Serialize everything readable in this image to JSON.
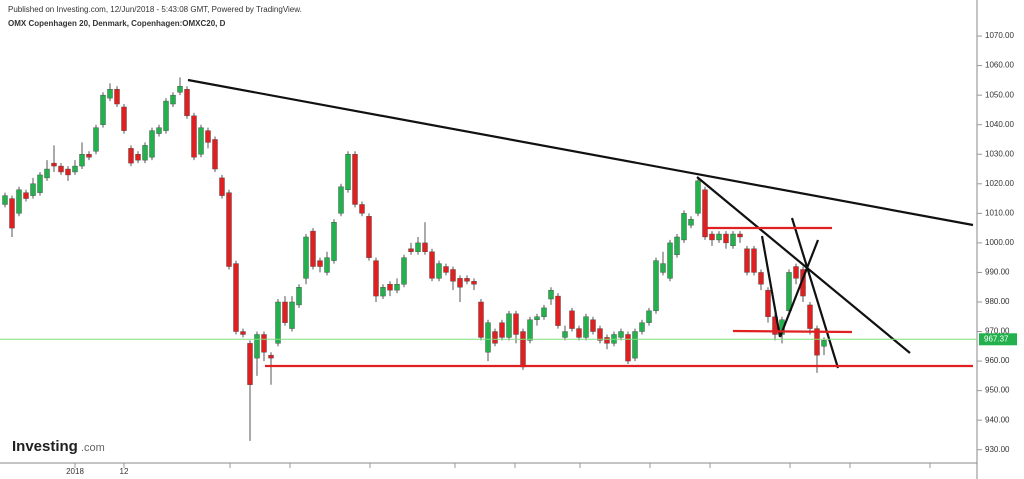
{
  "chart_data": {
    "type": "candlestick",
    "header": "Published on Investing.com, 12/Jun/2018 - 5:43:08 GMT, Powered by TradingView.",
    "title": "OMX Copenhagen 20, Denmark, Copenhagen:OMXC20, D",
    "logo": {
      "name": "Investing",
      "suffix": ".com"
    },
    "last_price": 967.37,
    "last_price_label": "967.37",
    "up_color": "#22b14c",
    "down_color": "#e02020",
    "ylim": [
      925.5,
      1079.5
    ],
    "yticks": [
      {
        "value": 930,
        "label": "930.00"
      },
      {
        "value": 940,
        "label": "940.00"
      },
      {
        "value": 950,
        "label": "950.00"
      },
      {
        "value": 960,
        "label": "960.00"
      },
      {
        "value": 970,
        "label": "970.00"
      },
      {
        "value": 980,
        "label": "980.00"
      },
      {
        "value": 990,
        "label": "990.00"
      },
      {
        "value": 1000,
        "label": "1000.00"
      },
      {
        "value": 1010,
        "label": "1010.00"
      },
      {
        "value": 1020,
        "label": "1020.00"
      },
      {
        "value": 1030,
        "label": "1030.00"
      },
      {
        "value": 1040,
        "label": "1040.00"
      },
      {
        "value": 1050,
        "label": "1050.00"
      },
      {
        "value": 1060,
        "label": "1060.00"
      },
      {
        "value": 1070,
        "label": "1070.00"
      }
    ],
    "categories": [
      null,
      null,
      null,
      null,
      null,
      null,
      null,
      null,
      null,
      null,
      "2018",
      null,
      null,
      null,
      null,
      null,
      null,
      "12",
      null,
      null,
      null,
      null,
      null,
      null,
      null,
      null,
      null,
      null,
      null,
      null,
      null,
      null,
      null,
      null,
      null,
      null,
      null,
      null,
      null,
      null,
      null,
      null,
      null,
      null,
      null,
      null,
      null,
      null,
      null,
      null,
      null,
      null,
      null,
      null,
      null,
      null,
      null,
      null,
      null,
      null,
      null,
      null,
      null,
      null,
      null,
      null,
      null,
      null,
      null,
      null,
      null,
      null,
      null,
      null,
      null,
      null,
      null,
      null,
      null,
      null,
      null,
      null,
      null,
      null,
      null,
      null,
      null,
      null,
      null,
      null,
      null,
      null,
      null,
      null,
      null,
      null,
      null,
      null,
      null,
      null,
      null,
      null,
      null,
      null,
      null,
      null,
      null,
      null,
      null,
      null,
      null,
      null,
      null,
      null,
      null,
      null,
      null,
      null
    ],
    "open": [
      1013,
      1015,
      1010,
      1017,
      1016,
      1017,
      1022,
      1027,
      1026,
      1025,
      1024,
      1026,
      1030,
      1031,
      1040,
      1049,
      1052,
      1046,
      1032,
      1030,
      1028,
      1029,
      1037,
      1038,
      1047,
      1051,
      1052,
      1043,
      1030,
      1038,
      1035,
      1022,
      1017,
      993,
      970,
      966,
      961,
      969,
      962,
      966,
      980,
      971,
      979,
      988,
      1004,
      994,
      990,
      994,
      1010,
      1018,
      1030,
      1013,
      1009,
      994,
      982,
      986,
      984,
      986,
      998,
      997,
      1000,
      997,
      988,
      992,
      991,
      988,
      988,
      987,
      980,
      963,
      970,
      973,
      968,
      976,
      970,
      967,
      974,
      975,
      981,
      982,
      968,
      977,
      971,
      968,
      974,
      971,
      968,
      966,
      968,
      969,
      961,
      970,
      973,
      977,
      990,
      988,
      996,
      1001,
      1006,
      1010,
      1018,
      1003,
      1001,
      1003,
      999,
      1003,
      998,
      998,
      990,
      984,
      975,
      969,
      977,
      992,
      991,
      979,
      971,
      965
    ],
    "high": [
      1017,
      1016,
      1019,
      1018,
      1022,
      1024,
      1028,
      1033,
      1027,
      1026,
      1028,
      1034,
      1031,
      1040,
      1051,
      1054,
      1053,
      1047,
      1033,
      1031,
      1034,
      1039,
      1040,
      1049,
      1051,
      1056,
      1053,
      1044,
      1040,
      1039,
      1036,
      1023,
      1018,
      994,
      971,
      967,
      970,
      970,
      963,
      981,
      982,
      982,
      986,
      1003,
      1005,
      995,
      997,
      1008,
      1020,
      1031,
      1031,
      1014,
      1010,
      995,
      986,
      987,
      988,
      996,
      1000,
      1002,
      1007,
      998,
      994,
      993,
      992,
      989,
      989,
      988,
      981,
      974,
      971,
      974,
      977,
      977,
      971,
      975,
      976,
      979,
      985,
      983,
      972,
      978,
      972,
      976,
      975,
      972,
      969,
      970,
      971,
      970,
      971,
      974,
      978,
      995,
      997,
      1001,
      1003,
      1011,
      1009,
      1022,
      1019,
      1004,
      1004,
      1004,
      1004,
      1004,
      999,
      999,
      991,
      985,
      976,
      975,
      991,
      993,
      992,
      980,
      972,
      968
    ],
    "low": [
      1012,
      1002,
      1009,
      1014,
      1015,
      1016,
      1021,
      1024,
      1023,
      1021,
      1023,
      1025,
      1028,
      1030,
      1039,
      1048,
      1046,
      1037,
      1026,
      1027,
      1027,
      1028,
      1036,
      1037,
      1046,
      1050,
      1042,
      1028,
      1029,
      1032,
      1024,
      1015,
      991,
      969,
      968,
      933,
      955,
      960,
      952,
      965,
      972,
      970,
      978,
      986,
      991,
      990,
      989,
      993,
      1009,
      1017,
      1012,
      1009,
      994,
      980,
      981,
      982,
      983,
      985,
      996,
      996,
      996,
      987,
      987,
      989,
      984,
      980,
      986,
      984,
      967,
      960,
      965,
      967,
      967,
      966,
      957,
      966,
      972,
      974,
      979,
      971,
      967,
      970,
      967,
      967,
      969,
      966,
      964,
      965,
      967,
      959,
      960,
      969,
      972,
      976,
      989,
      987,
      995,
      1000,
      1005,
      1009,
      1001,
      999,
      1000,
      998,
      998,
      1000,
      989,
      989,
      984,
      973,
      967,
      966,
      976,
      986,
      980,
      969,
      956,
      962
    ],
    "close": [
      1016,
      1005,
      1018,
      1015,
      1020,
      1023,
      1025,
      1026,
      1024,
      1023,
      1026,
      1030,
      1029,
      1039,
      1050,
      1052,
      1047,
      1038,
      1027,
      1028,
      1033,
      1038,
      1039,
      1048,
      1050,
      1053,
      1043,
      1029,
      1039,
      1034,
      1025,
      1016,
      992,
      970,
      969,
      952,
      969,
      963,
      961,
      980,
      973,
      980,
      985,
      1002,
      992,
      992,
      995,
      1007,
      1019,
      1030,
      1013,
      1010,
      995,
      982,
      985,
      984,
      986,
      995,
      997,
      1000,
      997,
      988,
      993,
      990,
      987,
      985,
      987,
      986,
      968,
      973,
      966,
      968,
      976,
      969,
      958,
      974,
      975,
      978,
      984,
      972,
      970,
      971,
      968,
      975,
      970,
      967,
      966,
      969,
      970,
      960,
      970,
      973,
      977,
      994,
      993,
      1000,
      1002,
      1010,
      1008,
      1021,
      1002,
      1001,
      1003,
      1000,
      1003,
      1002,
      990,
      990,
      986,
      975,
      969,
      974,
      990,
      988,
      982,
      971,
      962,
      967
    ]
  }
}
